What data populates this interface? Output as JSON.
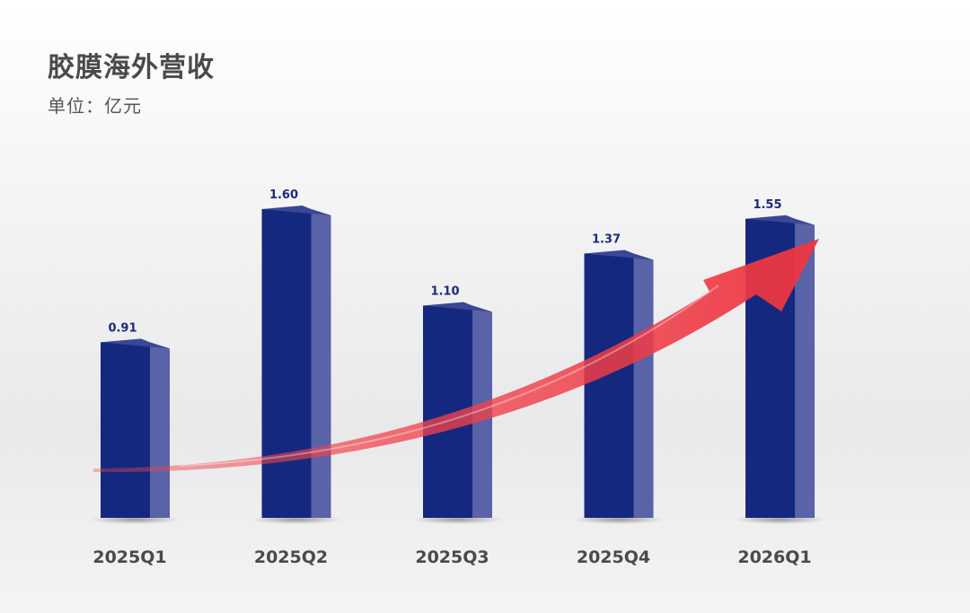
{
  "chart_data": {
    "type": "bar",
    "title": "胶膜海外营收",
    "subtitle": "单位：亿元",
    "categories": [
      "2025Q1",
      "2025Q2",
      "2025Q3",
      "2025Q4",
      "2026Q1"
    ],
    "values": [
      0.91,
      1.6,
      1.1,
      1.37,
      1.55
    ],
    "value_labels": [
      "0.91",
      "1.60",
      "1.10",
      "1.37",
      "1.55"
    ],
    "ylim": [
      0,
      1.8
    ],
    "grid": false,
    "legend": "none",
    "bar_style": "3d",
    "annotation": "upward-trend-arrow",
    "colors": {
      "bar_front": "#15287f",
      "bar_side": "#5a62a8",
      "bar_top": "#3a4796",
      "arrow": "#f0444c",
      "value_label": "#1b2a78",
      "tick_label": "#4a4a4a"
    }
  }
}
